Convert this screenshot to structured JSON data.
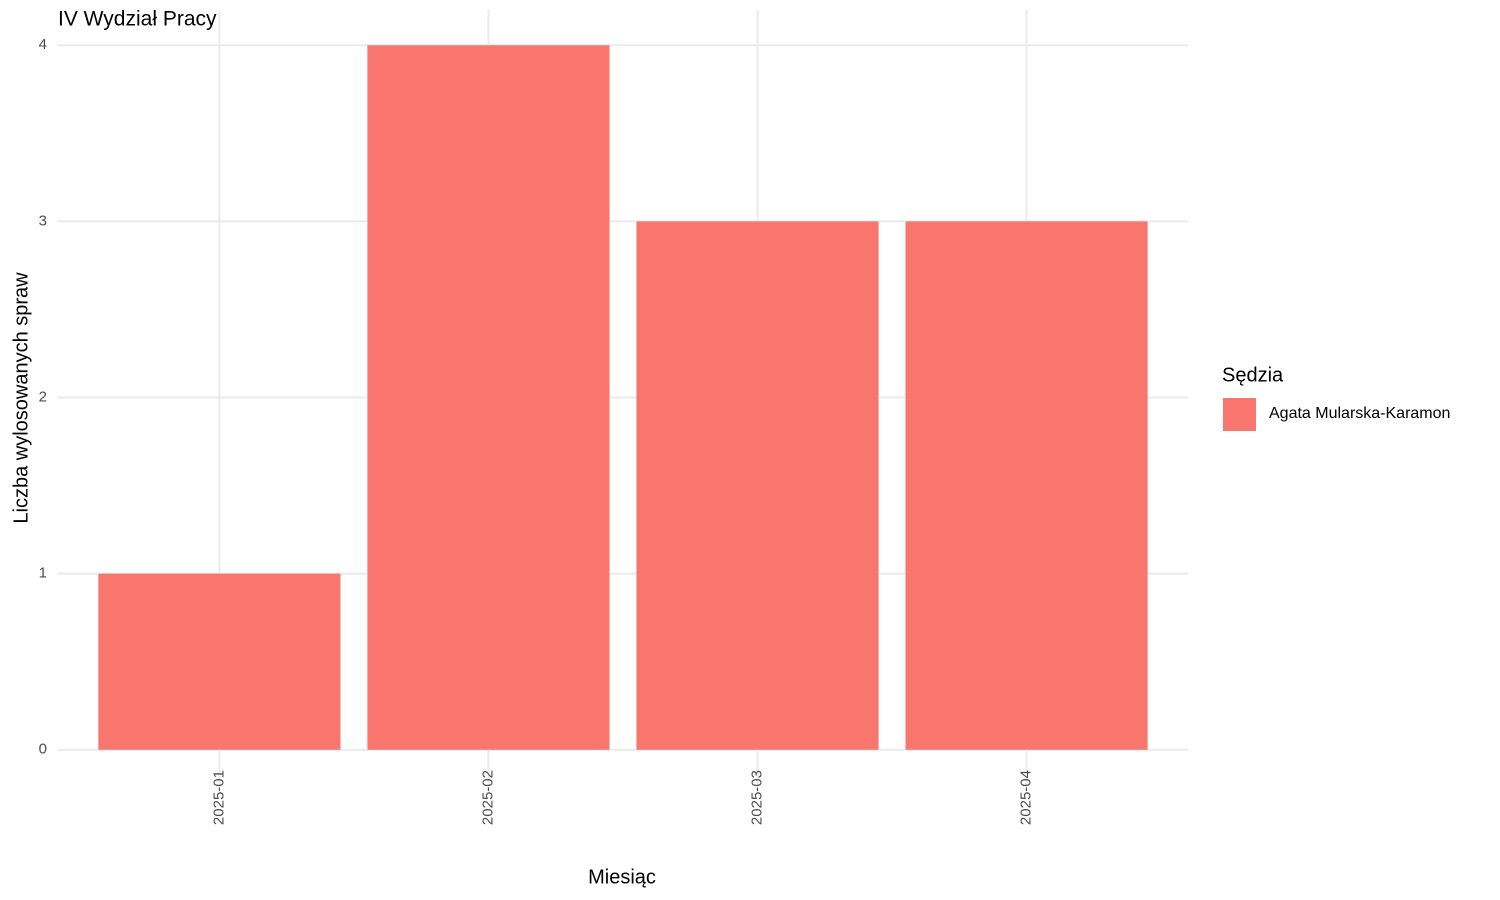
{
  "chart_data": {
    "type": "bar",
    "title": "IV Wydział Pracy",
    "x_label": "Miesiąc",
    "y_label": "Liczba wylosowanych spraw",
    "categories": [
      "2025-01",
      "2025-02",
      "2025-03",
      "2025-04"
    ],
    "legend_title": "Sędzia",
    "series": [
      {
        "name": "Agata Mularska-Karamon",
        "color": "#f8766d",
        "values": [
          1,
          4,
          3,
          3
        ]
      }
    ],
    "ylim": [
      -0.2,
      4.2
    ],
    "yticks": [
      0,
      1,
      2,
      3,
      4
    ],
    "grid": true,
    "legend_position": "right"
  }
}
